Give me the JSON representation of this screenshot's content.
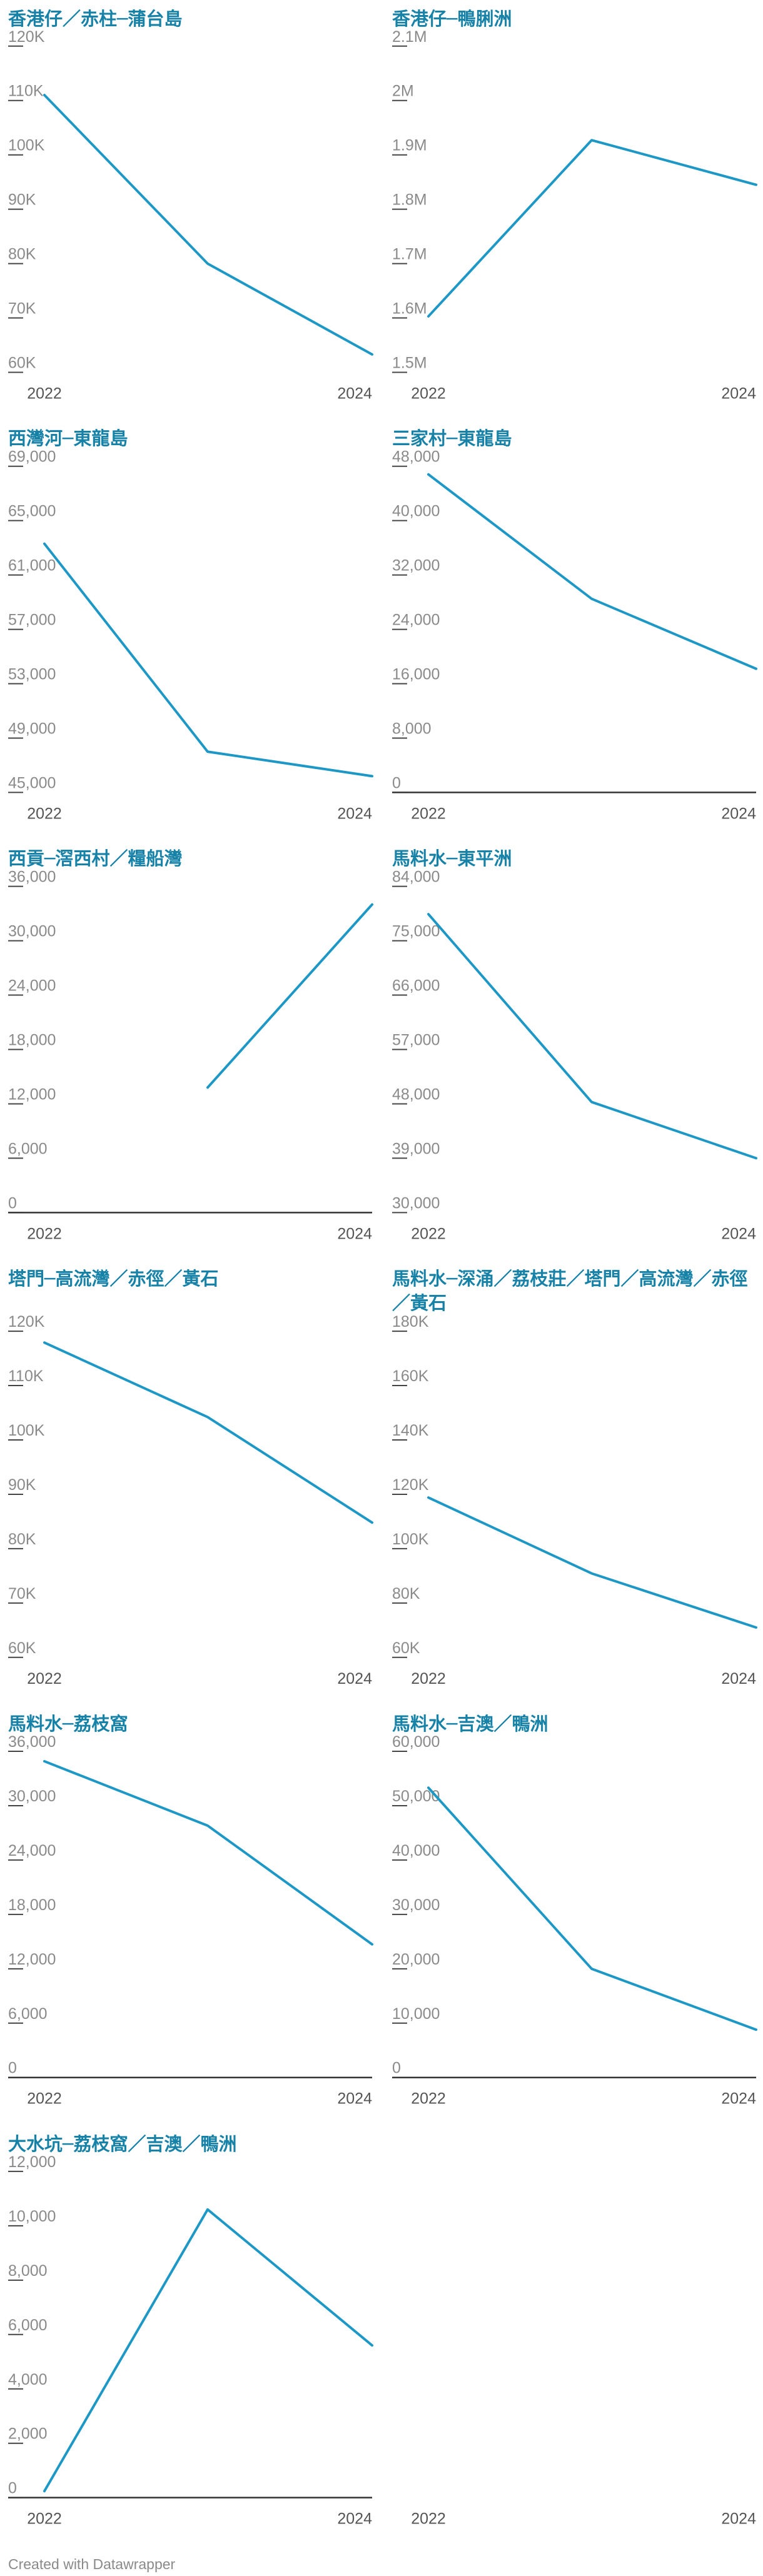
{
  "chart_data": [
    {
      "type": "line",
      "title": "香港仔／赤柱─蒲台島",
      "categories": [
        "2022",
        null,
        "2024"
      ],
      "values": [
        111000,
        80000,
        63300
      ],
      "color": "#1d98c6",
      "ylim": [
        60000,
        120000
      ],
      "yticks": [
        {
          "value": 60000,
          "label": "60K"
        },
        {
          "value": 70000,
          "label": "70K"
        },
        {
          "value": 80000,
          "label": "80K"
        },
        {
          "value": 90000,
          "label": "90K"
        },
        {
          "value": 100000,
          "label": "100K"
        },
        {
          "value": 110000,
          "label": "110K"
        },
        {
          "value": 120000,
          "label": "120K"
        }
      ]
    },
    {
      "type": "line",
      "title": "香港仔─鴨脷洲",
      "categories": [
        "2022",
        null,
        "2024"
      ],
      "values": [
        1603000,
        1927000,
        1845000
      ],
      "color": "#1d98c6",
      "ylim": [
        1500000,
        2100000
      ],
      "yticks": [
        {
          "value": 1500000,
          "label": "1.5M"
        },
        {
          "value": 1600000,
          "label": "1.6M"
        },
        {
          "value": 1700000,
          "label": "1.7M"
        },
        {
          "value": 1800000,
          "label": "1.8M"
        },
        {
          "value": 1900000,
          "label": "1.9M"
        },
        {
          "value": 2000000,
          "label": "2M"
        },
        {
          "value": 2100000,
          "label": "2.1M"
        }
      ]
    },
    {
      "type": "line",
      "title": "西灣河─東龍島",
      "categories": [
        "2022",
        null,
        "2024"
      ],
      "values": [
        63300,
        48000,
        46200
      ],
      "color": "#1d98c6",
      "ylim": [
        45000,
        69000
      ],
      "yticks": [
        {
          "value": 45000,
          "label": "45,000"
        },
        {
          "value": 49000,
          "label": "49,000"
        },
        {
          "value": 53000,
          "label": "53,000"
        },
        {
          "value": 57000,
          "label": "57,000"
        },
        {
          "value": 61000,
          "label": "61,000"
        },
        {
          "value": 65000,
          "label": "65,000"
        },
        {
          "value": 69000,
          "label": "69,000"
        }
      ]
    },
    {
      "type": "line",
      "title": "三家村─東龍島",
      "categories": [
        "2022",
        null,
        "2024"
      ],
      "values": [
        46800,
        28500,
        18200
      ],
      "color": "#1d98c6",
      "ylim": [
        0,
        48000
      ],
      "yticks": [
        0,
        {
          "value": 8000,
          "label": "8,000"
        },
        {
          "value": 16000,
          "label": "16,000"
        },
        {
          "value": 24000,
          "label": "24,000"
        },
        {
          "value": 32000,
          "label": "32,000"
        },
        {
          "value": 40000,
          "label": "40,000"
        },
        {
          "value": 48000,
          "label": "48,000"
        }
      ]
    },
    {
      "type": "line",
      "title": "西貢─滘西村／糧船灣",
      "categories": [
        "2022",
        null,
        "2024"
      ],
      "values": [
        null,
        13800,
        34000
      ],
      "color": "#1d98c6",
      "ylim": [
        0,
        36000
      ],
      "yticks": [
        0,
        {
          "value": 6000,
          "label": "6,000"
        },
        {
          "value": 12000,
          "label": "12,000"
        },
        {
          "value": 18000,
          "label": "18,000"
        },
        {
          "value": 24000,
          "label": "24,000"
        },
        {
          "value": 30000,
          "label": "30,000"
        },
        {
          "value": 36000,
          "label": "36,000"
        }
      ]
    },
    {
      "type": "line",
      "title": "馬料水─東平洲",
      "categories": [
        "2022",
        null,
        "2024"
      ],
      "values": [
        79400,
        48300,
        39000
      ],
      "color": "#1d98c6",
      "ylim": [
        30000,
        84000
      ],
      "yticks": [
        {
          "value": 30000,
          "label": "30,000"
        },
        {
          "value": 39000,
          "label": "39,000"
        },
        {
          "value": 48000,
          "label": "48,000"
        },
        {
          "value": 57000,
          "label": "57,000"
        },
        {
          "value": 66000,
          "label": "66,000"
        },
        {
          "value": 75000,
          "label": "75,000"
        },
        {
          "value": 84000,
          "label": "84,000"
        }
      ]
    },
    {
      "type": "line",
      "title": "塔門─高流灣／赤徑／黃石",
      "categories": [
        "2022",
        null,
        "2024"
      ],
      "values": [
        117900,
        104200,
        84800
      ],
      "color": "#1d98c6",
      "ylim": [
        60000,
        120000
      ],
      "yticks": [
        {
          "value": 60000,
          "label": "60K"
        },
        {
          "value": 70000,
          "label": "70K"
        },
        {
          "value": 80000,
          "label": "80K"
        },
        {
          "value": 90000,
          "label": "90K"
        },
        {
          "value": 100000,
          "label": "100K"
        },
        {
          "value": 110000,
          "label": "110K"
        },
        {
          "value": 120000,
          "label": "120K"
        }
      ]
    },
    {
      "type": "line",
      "title": "馬料水─深涌／荔枝莊／塔門／高流灣／赤徑／黃石",
      "categories": [
        "2022",
        null,
        "2024"
      ],
      "values": [
        118800,
        90900,
        71000
      ],
      "color": "#1d98c6",
      "ylim": [
        60000,
        180000
      ],
      "yticks": [
        {
          "value": 60000,
          "label": "60K"
        },
        {
          "value": 80000,
          "label": "80K"
        },
        {
          "value": 100000,
          "label": "100K"
        },
        {
          "value": 120000,
          "label": "120K"
        },
        {
          "value": 140000,
          "label": "140K"
        },
        {
          "value": 160000,
          "label": "160K"
        },
        {
          "value": 180000,
          "label": "180K"
        }
      ]
    },
    {
      "type": "line",
      "title": "馬料水─荔枝窩",
      "categories": [
        "2022",
        null,
        "2024"
      ],
      "values": [
        34900,
        27800,
        14700
      ],
      "color": "#1d98c6",
      "ylim": [
        0,
        36000
      ],
      "yticks": [
        0,
        {
          "value": 6000,
          "label": "6,000"
        },
        {
          "value": 12000,
          "label": "12,000"
        },
        {
          "value": 18000,
          "label": "18,000"
        },
        {
          "value": 24000,
          "label": "24,000"
        },
        {
          "value": 30000,
          "label": "30,000"
        },
        {
          "value": 36000,
          "label": "36,000"
        }
      ]
    },
    {
      "type": "line",
      "title": "馬料水─吉澳／鴨洲",
      "categories": [
        "2022",
        null,
        "2024"
      ],
      "values": [
        53300,
        20000,
        8800
      ],
      "color": "#1d98c6",
      "ylim": [
        0,
        60000
      ],
      "yticks": [
        0,
        {
          "value": 10000,
          "label": "10,000"
        },
        {
          "value": 20000,
          "label": "20,000"
        },
        {
          "value": 30000,
          "label": "30,000"
        },
        {
          "value": 40000,
          "label": "40,000"
        },
        {
          "value": 50000,
          "label": "50,000"
        },
        {
          "value": 60000,
          "label": "60,000"
        }
      ]
    },
    {
      "type": "line",
      "title": "大水坑─荔枝窩／吉澳／鴨洲",
      "categories": [
        "2022",
        null,
        "2024"
      ],
      "values": [
        240,
        10600,
        5600
      ],
      "color": "#1d98c6",
      "ylim": [
        0,
        12000
      ],
      "yticks": [
        0,
        {
          "value": 2000,
          "label": "2,000"
        },
        {
          "value": 4000,
          "label": "4,000"
        },
        {
          "value": 6000,
          "label": "6,000"
        },
        {
          "value": 8000,
          "label": "8,000"
        },
        {
          "value": 10000,
          "label": "10,000"
        },
        {
          "value": 12000,
          "label": "12,000"
        }
      ]
    }
  ],
  "empty_panel": {
    "categories": [
      "2022",
      "2024"
    ]
  },
  "footer": "Created with Datawrapper"
}
